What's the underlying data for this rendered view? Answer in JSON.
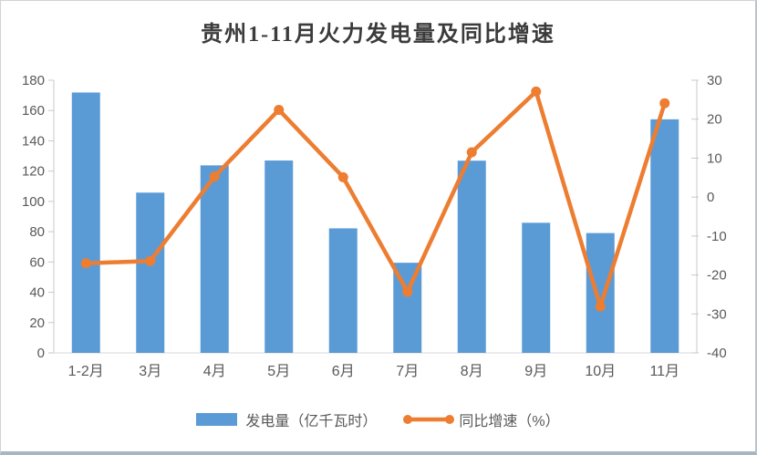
{
  "chart_data": {
    "type": "combo-bar-line",
    "title": "贵州1-11月火力发电量及同比增速",
    "categories": [
      "1-2月",
      "3月",
      "4月",
      "5月",
      "6月",
      "7月",
      "8月",
      "9月",
      "10月",
      "11月"
    ],
    "series": [
      {
        "name": "发电量（亿千瓦时）",
        "type": "bar",
        "axis": "left",
        "color": "#5B9BD5",
        "values": [
          171.9,
          105.8,
          123.8,
          127.0,
          82.2,
          59.5,
          126.9,
          85.9,
          79.1,
          154.2
        ]
      },
      {
        "name": "同比增速（%）",
        "type": "line",
        "axis": "right",
        "color": "#ED7D31",
        "values": [
          -17.0,
          -16.4,
          5.3,
          22.4,
          5.1,
          -24.3,
          11.5,
          27.1,
          -28.1,
          24.1
        ]
      }
    ],
    "left_axis": {
      "min": 0,
      "max": 180,
      "step": 20,
      "ticks": [
        "0",
        "20",
        "40",
        "60",
        "80",
        "100",
        "120",
        "140",
        "160",
        "180"
      ]
    },
    "right_axis": {
      "min": -40,
      "max": 30,
      "step": 10,
      "ticks": [
        "-40",
        "-30",
        "-20",
        "-10",
        "0",
        "10",
        "20",
        "30"
      ]
    },
    "grid": false,
    "legend_position": "bottom",
    "colors": {
      "axis_line": "#c9c9c9",
      "bottom_axis_line": "#d9d9d9",
      "tick_text": "#595959",
      "title_text": "#3b3b3b"
    }
  }
}
